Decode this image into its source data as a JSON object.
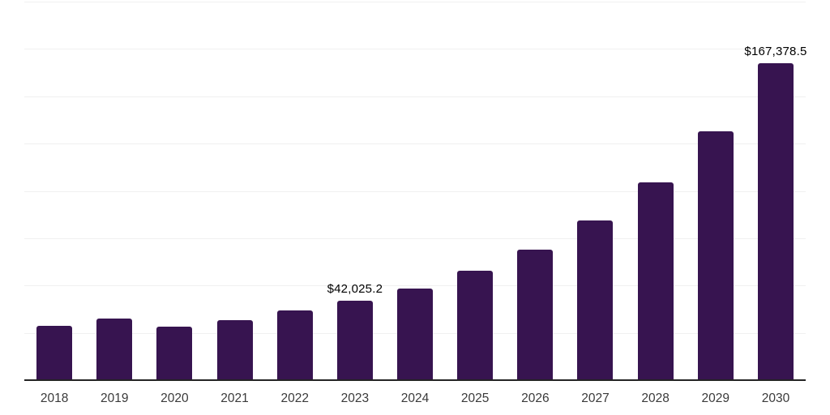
{
  "chart_data": {
    "type": "bar",
    "title": "",
    "categories": [
      "2018",
      "2019",
      "2020",
      "2021",
      "2022",
      "2023",
      "2024",
      "2025",
      "2026",
      "2027",
      "2028",
      "2029",
      "2030"
    ],
    "values": [
      28800,
      32600,
      28300,
      31800,
      36900,
      42025.2,
      48400,
      57800,
      69000,
      84300,
      104500,
      131300,
      167378.5
    ],
    "data_labels": [
      {
        "index": 5,
        "text": "$42,025.2"
      },
      {
        "index": 12,
        "text": "$167,378.5"
      }
    ],
    "xlabel": "",
    "ylabel": "",
    "ylim": [
      0,
      200000
    ],
    "gridline_step": 25000,
    "grid": "horizontal",
    "legend": "off",
    "y_axis_labels_visible": false,
    "colors": {
      "bar": "#371450",
      "gridline": "#f0f0f0",
      "axis_line": "#242424",
      "value_label": "#000000",
      "tick_label": "#3a3a3a",
      "background": "#ffffff"
    }
  }
}
